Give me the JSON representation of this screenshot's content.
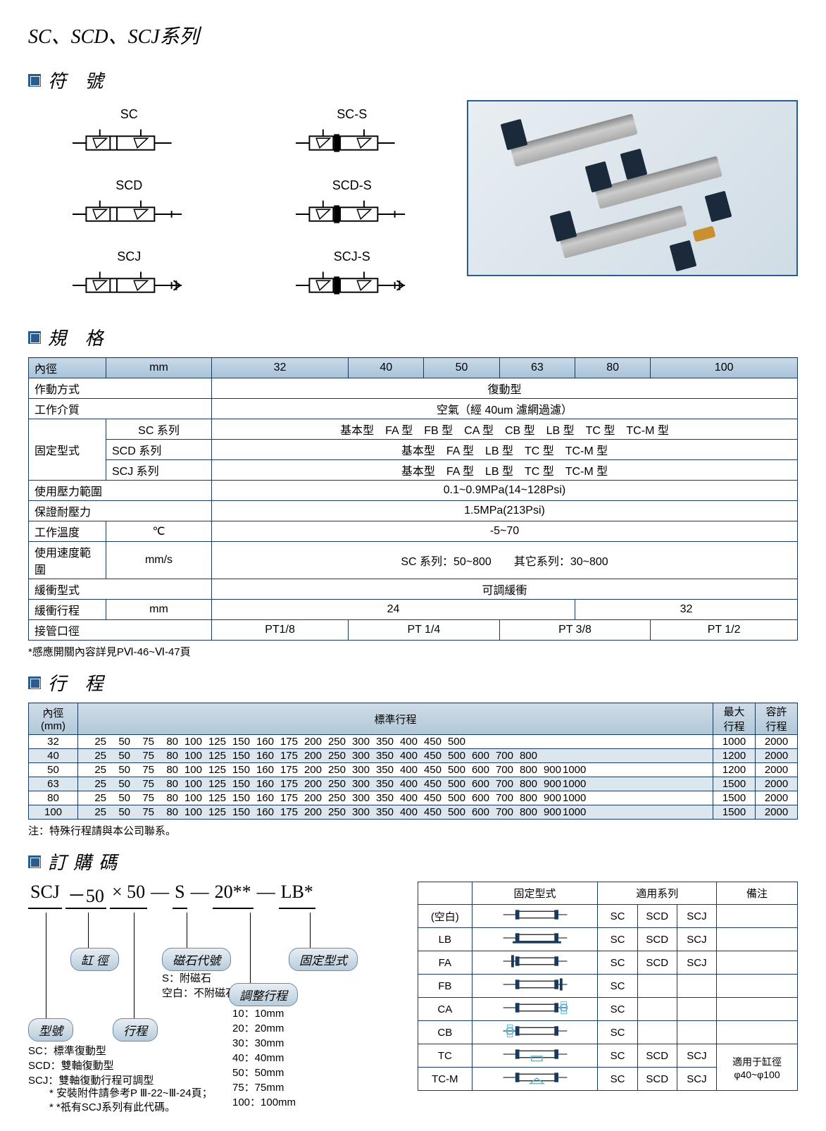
{
  "main_title": "SC、SCD、SCJ系列",
  "sections": {
    "symbols": "符 號",
    "specs": "規 格",
    "stroke": "行 程",
    "order": "訂購碼"
  },
  "symbol_labels": [
    "SC",
    "SC-S",
    "SCD",
    "SCD-S",
    "SCJ",
    "SCJ-S"
  ],
  "spec_table": {
    "headers": {
      "bore": "內徑",
      "unit_mm": "mm"
    },
    "bores": [
      "32",
      "40",
      "50",
      "63",
      "80",
      "100"
    ],
    "rows": {
      "action": {
        "label": "作動方式",
        "value": "復動型"
      },
      "medium": {
        "label": "工作介質",
        "value": "空氣（經 40um 濾網過濾）"
      },
      "mount": {
        "label": "固定型式"
      },
      "sc_series": {
        "label": "SC 系列",
        "types": "基本型　FA 型　FB 型　CA 型　CB 型　LB 型　TC 型　TC-M 型"
      },
      "scd_series": {
        "label": "SCD 系列",
        "types": "基本型　FA 型　LB 型　TC 型　TC-M 型"
      },
      "scj_series": {
        "label": "SCJ 系列",
        "types": "基本型　FA 型　LB 型　TC 型　TC-M 型"
      },
      "pressure": {
        "label": "使用壓力範圍",
        "value": "0.1~0.9MPa(14~128Psi)"
      },
      "proof": {
        "label": "保證耐壓力",
        "value": "1.5MPa(213Psi)"
      },
      "temp": {
        "label": "工作溫度",
        "unit": "℃",
        "value": "-5~70"
      },
      "speed": {
        "label": "使用速度範圍",
        "unit": "mm/s",
        "value": "SC 系列：50~800　　其它系列：30~800"
      },
      "cushion_type": {
        "label": "緩衝型式",
        "value": "可調緩衝"
      },
      "cushion_stroke": {
        "label": "緩衝行程",
        "unit": "mm",
        "v1": "24",
        "v2": "32"
      },
      "port": {
        "label": "接管口徑",
        "values": [
          "PT1/8",
          "PT 1/4",
          "PT 3/8",
          "PT 1/2"
        ]
      }
    }
  },
  "spec_footnote": "*感應開關內容詳見PⅥ-46~Ⅵ-47頁",
  "stroke_table": {
    "header": {
      "bore": "內徑\n(mm)",
      "std": "標準行程",
      "max": "最大\n行程",
      "allow": "容許\n行程"
    },
    "rows": [
      {
        "bore": "32",
        "values": [
          25,
          50,
          75,
          80,
          100,
          125,
          150,
          160,
          175,
          200,
          250,
          300,
          350,
          400,
          450,
          500
        ],
        "max": "1000",
        "allow": "2000"
      },
      {
        "bore": "40",
        "values": [
          25,
          50,
          75,
          80,
          100,
          125,
          150,
          160,
          175,
          200,
          250,
          300,
          350,
          400,
          450,
          500,
          600,
          700,
          800
        ],
        "max": "1200",
        "allow": "2000"
      },
      {
        "bore": "50",
        "values": [
          25,
          50,
          75,
          80,
          100,
          125,
          150,
          160,
          175,
          200,
          250,
          300,
          350,
          400,
          450,
          500,
          600,
          700,
          800,
          900,
          1000
        ],
        "max": "1200",
        "allow": "2000"
      },
      {
        "bore": "63",
        "values": [
          25,
          50,
          75,
          80,
          100,
          125,
          150,
          160,
          175,
          200,
          250,
          300,
          350,
          400,
          450,
          500,
          600,
          700,
          800,
          900,
          1000
        ],
        "max": "1500",
        "allow": "2000"
      },
      {
        "bore": "80",
        "values": [
          25,
          50,
          75,
          80,
          100,
          125,
          150,
          160,
          175,
          200,
          250,
          300,
          350,
          400,
          450,
          500,
          600,
          700,
          800,
          900,
          1000
        ],
        "max": "1500",
        "allow": "2000"
      },
      {
        "bore": "100",
        "values": [
          25,
          50,
          75,
          80,
          100,
          125,
          150,
          160,
          175,
          200,
          250,
          300,
          350,
          400,
          450,
          500,
          600,
          700,
          800,
          900,
          1000
        ],
        "max": "1500",
        "allow": "2000"
      }
    ]
  },
  "stroke_footnote": "注：特殊行程請與本公司聯系。",
  "order": {
    "code_parts": [
      "SCJ",
      "－50",
      "× 50",
      "—",
      "S",
      "—",
      "20**",
      "—",
      "LB*"
    ],
    "pills": {
      "model": "型號",
      "bore": "缸 徑",
      "stroke": "行程",
      "magnet": "磁石代號",
      "adjust": "調整行程",
      "mount": "固定型式"
    },
    "magnet_desc": "S：附磁石\n空白：不附磁石",
    "adjust_desc": "10：10mm\n20：20mm\n30：30mm\n40：40mm\n50：50mm\n75：75mm\n100：100mm",
    "model_desc": "SC：標準復動型\nSCD：雙軸復動型\nSCJ：雙軸復動行程可調型",
    "footnotes": [
      "* 安裝附件請參考P Ⅲ-22~Ⅲ-24頁；",
      "* *祇有SCJ系列有此代碼。"
    ]
  },
  "mount_table": {
    "headers": [
      "",
      "固定型式",
      "適用系列",
      "",
      "",
      "備注"
    ],
    "rows": [
      {
        "code": "(空白)",
        "series": [
          "SC",
          "SCD",
          "SCJ"
        ],
        "note": ""
      },
      {
        "code": "LB",
        "series": [
          "SC",
          "SCD",
          "SCJ"
        ],
        "note": ""
      },
      {
        "code": "FA",
        "series": [
          "SC",
          "SCD",
          "SCJ"
        ],
        "note": ""
      },
      {
        "code": "FB",
        "series": [
          "SC"
        ],
        "note": ""
      },
      {
        "code": "CA",
        "series": [
          "SC"
        ],
        "note": ""
      },
      {
        "code": "CB",
        "series": [
          "SC"
        ],
        "note": ""
      },
      {
        "code": "TC",
        "series": [
          "SC",
          "SCD",
          "SCJ"
        ],
        "note": "適用于缸徑\nφ40~φ100"
      },
      {
        "code": "TC-M",
        "series": [
          "SC",
          "SCD",
          "SCJ"
        ],
        "note": ""
      }
    ]
  },
  "colors": {
    "border": "#1a3a5c",
    "blue_sq": "#2a5c8f",
    "header_bg_top": "#c8dae8",
    "header_bg_bot": "#a8c2d8",
    "alt_row": "#dce6ee"
  }
}
